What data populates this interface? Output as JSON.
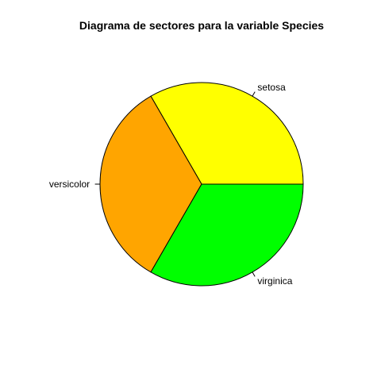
{
  "chart_data": {
    "type": "pie",
    "title": "Diagrama de sectores para la variable Species",
    "categories": [
      "setosa",
      "versicolor",
      "virginica"
    ],
    "values": [
      50,
      50,
      50
    ],
    "colors": [
      "#ffff00",
      "#ffa500",
      "#00ff00"
    ],
    "start_angle_deg": 0,
    "direction": "counterclockwise",
    "legend": "none"
  }
}
